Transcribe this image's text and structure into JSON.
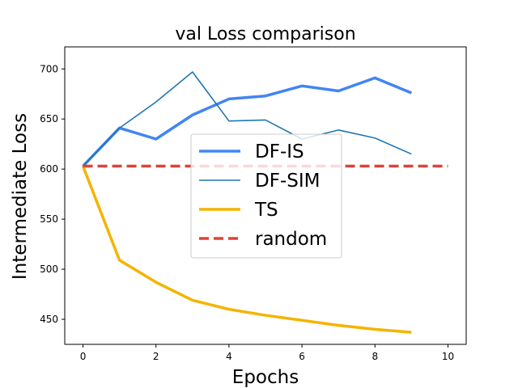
{
  "chart_data": {
    "type": "line",
    "title": "val Loss comparison",
    "xlabel": "Epochs",
    "ylabel": "Intermediate Loss",
    "xlim": [
      -0.5,
      10.5
    ],
    "ylim": [
      425,
      722
    ],
    "x_ticks": [
      0,
      2,
      4,
      6,
      8,
      10
    ],
    "y_ticks": [
      450,
      500,
      550,
      600,
      650,
      700
    ],
    "grid": false,
    "legend_position": "center",
    "series": [
      {
        "name": "DF-IS",
        "color": "#4285f4",
        "style": "solid",
        "width": "thick",
        "x": [
          0,
          1,
          2,
          3,
          4,
          5,
          6,
          7,
          8,
          9
        ],
        "y": [
          603,
          641,
          630,
          654,
          670,
          673,
          683,
          678,
          691,
          676
        ]
      },
      {
        "name": "DF-SIM",
        "color": "#1f77b4",
        "style": "solid",
        "width": "thin",
        "x": [
          0,
          1,
          2,
          3,
          4,
          5,
          6,
          7,
          8,
          9
        ],
        "y": [
          603,
          641,
          667,
          697,
          648,
          649,
          630,
          639,
          631,
          615
        ]
      },
      {
        "name": "TS",
        "color": "#f4b400",
        "style": "solid",
        "width": "thick",
        "x": [
          0,
          1,
          2,
          3,
          4,
          5,
          6,
          7,
          8,
          9
        ],
        "y": [
          603,
          509,
          487,
          469,
          460,
          454,
          449,
          444,
          440,
          437
        ]
      },
      {
        "name": "random",
        "color": "#db4437",
        "style": "dashed",
        "width": "thick",
        "x": [
          0,
          10
        ],
        "y": [
          603,
          603
        ]
      }
    ]
  }
}
